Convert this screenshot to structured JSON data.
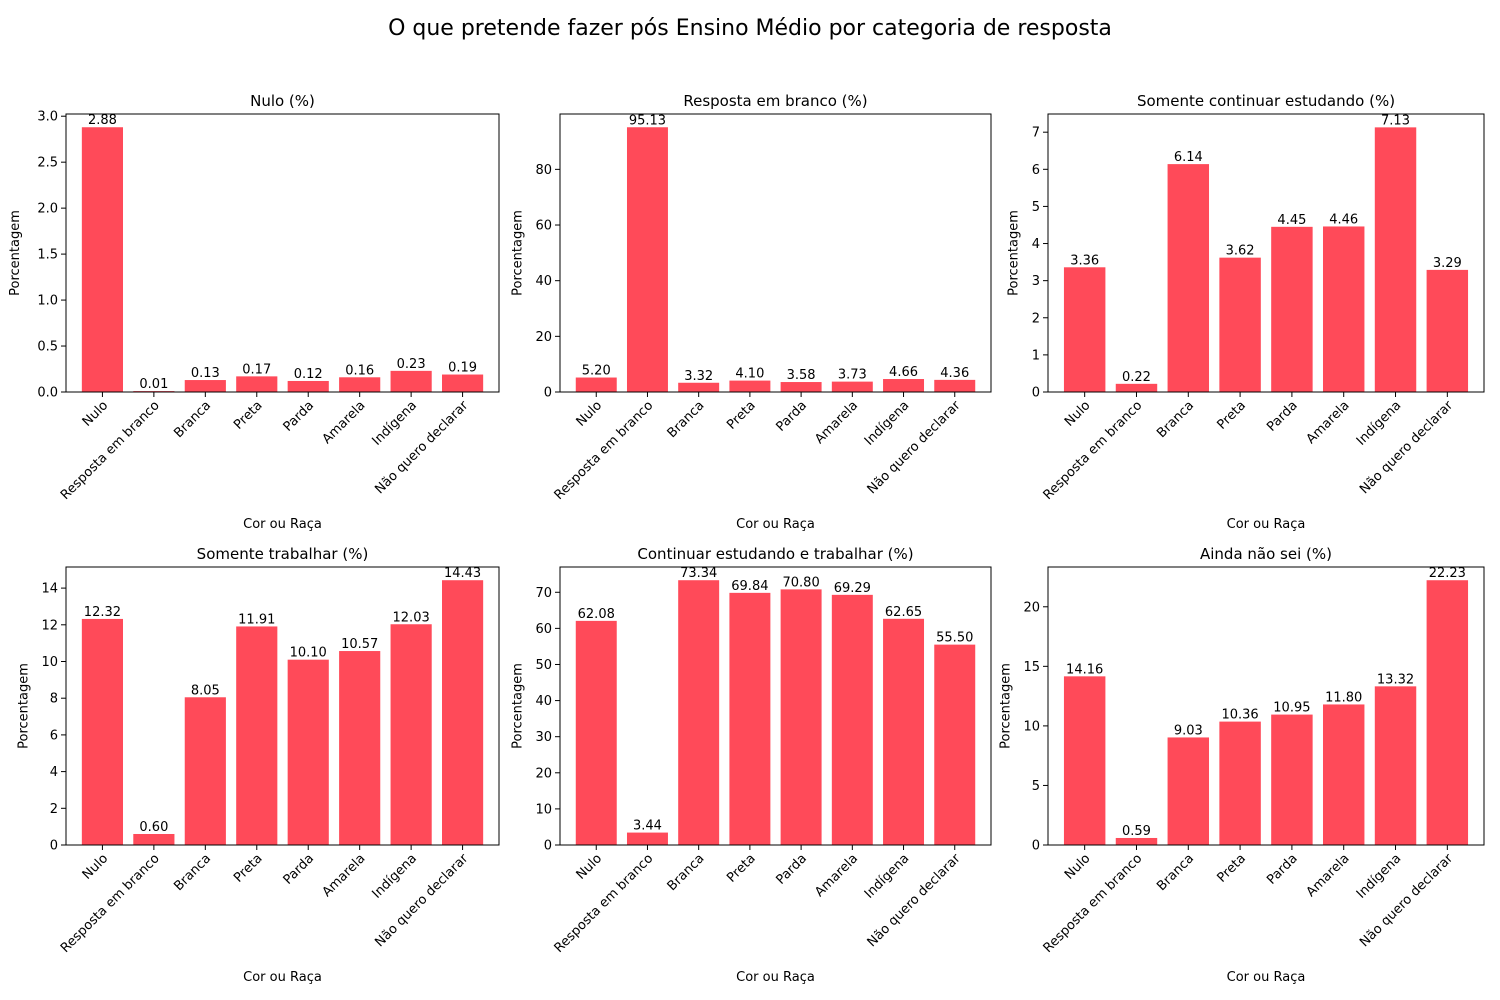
{
  "figure": {
    "title": "O que pretende fazer pós Ensino Médio por categoria de resposta",
    "bar_color": "#ff4a59"
  },
  "chart_data": [
    {
      "type": "bar",
      "title": "Nulo (%)",
      "xlabel": "Cor ou Raça",
      "ylabel": "Porcentagem",
      "categories": [
        "Nulo",
        "Resposta em branco",
        "Branca",
        "Preta",
        "Parda",
        "Amarela",
        "Indígena",
        "Não quero declarar"
      ],
      "values": [
        2.88,
        0.01,
        0.13,
        0.17,
        0.12,
        0.16,
        0.23,
        0.19
      ],
      "data_labels": [
        "2.88",
        "0.01",
        "0.13",
        "0.17",
        "0.12",
        "0.16",
        "0.23",
        "0.19"
      ],
      "ylim": [
        0,
        3.024
      ],
      "yticks": [
        0.0,
        0.5,
        1.0,
        1.5,
        2.0,
        2.5,
        3.0
      ],
      "ytick_labels": [
        "0.0",
        "0.5",
        "1.0",
        "1.5",
        "2.0",
        "2.5",
        "3.0"
      ]
    },
    {
      "type": "bar",
      "title": "Resposta em branco (%)",
      "xlabel": "Cor ou Raça",
      "ylabel": "Porcentagem",
      "categories": [
        "Nulo",
        "Resposta em branco",
        "Branca",
        "Preta",
        "Parda",
        "Amarela",
        "Indígena",
        "Não quero declarar"
      ],
      "values": [
        5.2,
        95.13,
        3.32,
        4.1,
        3.58,
        3.73,
        4.66,
        4.36
      ],
      "data_labels": [
        "5.20",
        "95.13",
        "3.32",
        "4.10",
        "3.58",
        "3.73",
        "4.66",
        "4.36"
      ],
      "ylim": [
        0,
        99.89
      ],
      "yticks": [
        0,
        20,
        40,
        60,
        80
      ],
      "ytick_labels": [
        "0",
        "20",
        "40",
        "60",
        "80"
      ]
    },
    {
      "type": "bar",
      "title": "Somente continuar estudando (%)",
      "xlabel": "Cor ou Raça",
      "ylabel": "Porcentagem",
      "categories": [
        "Nulo",
        "Resposta em branco",
        "Branca",
        "Preta",
        "Parda",
        "Amarela",
        "Indígena",
        "Não quero declarar"
      ],
      "values": [
        3.36,
        0.22,
        6.14,
        3.62,
        4.45,
        4.46,
        7.13,
        3.29
      ],
      "data_labels": [
        "3.36",
        "0.22",
        "6.14",
        "3.62",
        "4.45",
        "4.46",
        "7.13",
        "3.29"
      ],
      "ylim": [
        0,
        7.49
      ],
      "yticks": [
        0,
        1,
        2,
        3,
        4,
        5,
        6,
        7
      ],
      "ytick_labels": [
        "0",
        "1",
        "2",
        "3",
        "4",
        "5",
        "6",
        "7"
      ]
    },
    {
      "type": "bar",
      "title": "Somente trabalhar (%)",
      "xlabel": "Cor ou Raça",
      "ylabel": "Porcentagem",
      "categories": [
        "Nulo",
        "Resposta em branco",
        "Branca",
        "Preta",
        "Parda",
        "Amarela",
        "Indígena",
        "Não quero declarar"
      ],
      "values": [
        12.32,
        0.6,
        8.05,
        11.91,
        10.1,
        10.57,
        12.03,
        14.43
      ],
      "data_labels": [
        "12.32",
        "0.60",
        "8.05",
        "11.91",
        "10.10",
        "10.57",
        "12.03",
        "14.43"
      ],
      "ylim": [
        0,
        15.15
      ],
      "yticks": [
        0,
        2,
        4,
        6,
        8,
        10,
        12,
        14
      ],
      "ytick_labels": [
        "0",
        "2",
        "4",
        "6",
        "8",
        "10",
        "12",
        "14"
      ]
    },
    {
      "type": "bar",
      "title": "Continuar estudando e trabalhar (%)",
      "xlabel": "Cor ou Raça",
      "ylabel": "Porcentagem",
      "categories": [
        "Nulo",
        "Resposta em branco",
        "Branca",
        "Preta",
        "Parda",
        "Amarela",
        "Indígena",
        "Não quero declarar"
      ],
      "values": [
        62.08,
        3.44,
        73.34,
        69.84,
        70.8,
        69.29,
        62.65,
        55.5
      ],
      "data_labels": [
        "62.08",
        "3.44",
        "73.34",
        "69.84",
        "70.80",
        "69.29",
        "62.65",
        "55.50"
      ],
      "ylim": [
        0,
        77.0
      ],
      "yticks": [
        0,
        10,
        20,
        30,
        40,
        50,
        60,
        70
      ],
      "ytick_labels": [
        "0",
        "10",
        "20",
        "30",
        "40",
        "50",
        "60",
        "70"
      ]
    },
    {
      "type": "bar",
      "title": "Ainda não sei (%)",
      "xlabel": "Cor ou Raça",
      "ylabel": "Porcentagem",
      "categories": [
        "Nulo",
        "Resposta em branco",
        "Branca",
        "Preta",
        "Parda",
        "Amarela",
        "Indígena",
        "Não quero declarar"
      ],
      "values": [
        14.16,
        0.59,
        9.03,
        10.36,
        10.95,
        11.8,
        13.32,
        22.23
      ],
      "data_labels": [
        "14.16",
        "0.59",
        "9.03",
        "10.36",
        "10.95",
        "11.80",
        "13.32",
        "22.23"
      ],
      "ylim": [
        0,
        23.34
      ],
      "yticks": [
        0,
        5,
        10,
        15,
        20
      ],
      "ytick_labels": [
        "0",
        "5",
        "10",
        "15",
        "20"
      ]
    }
  ]
}
